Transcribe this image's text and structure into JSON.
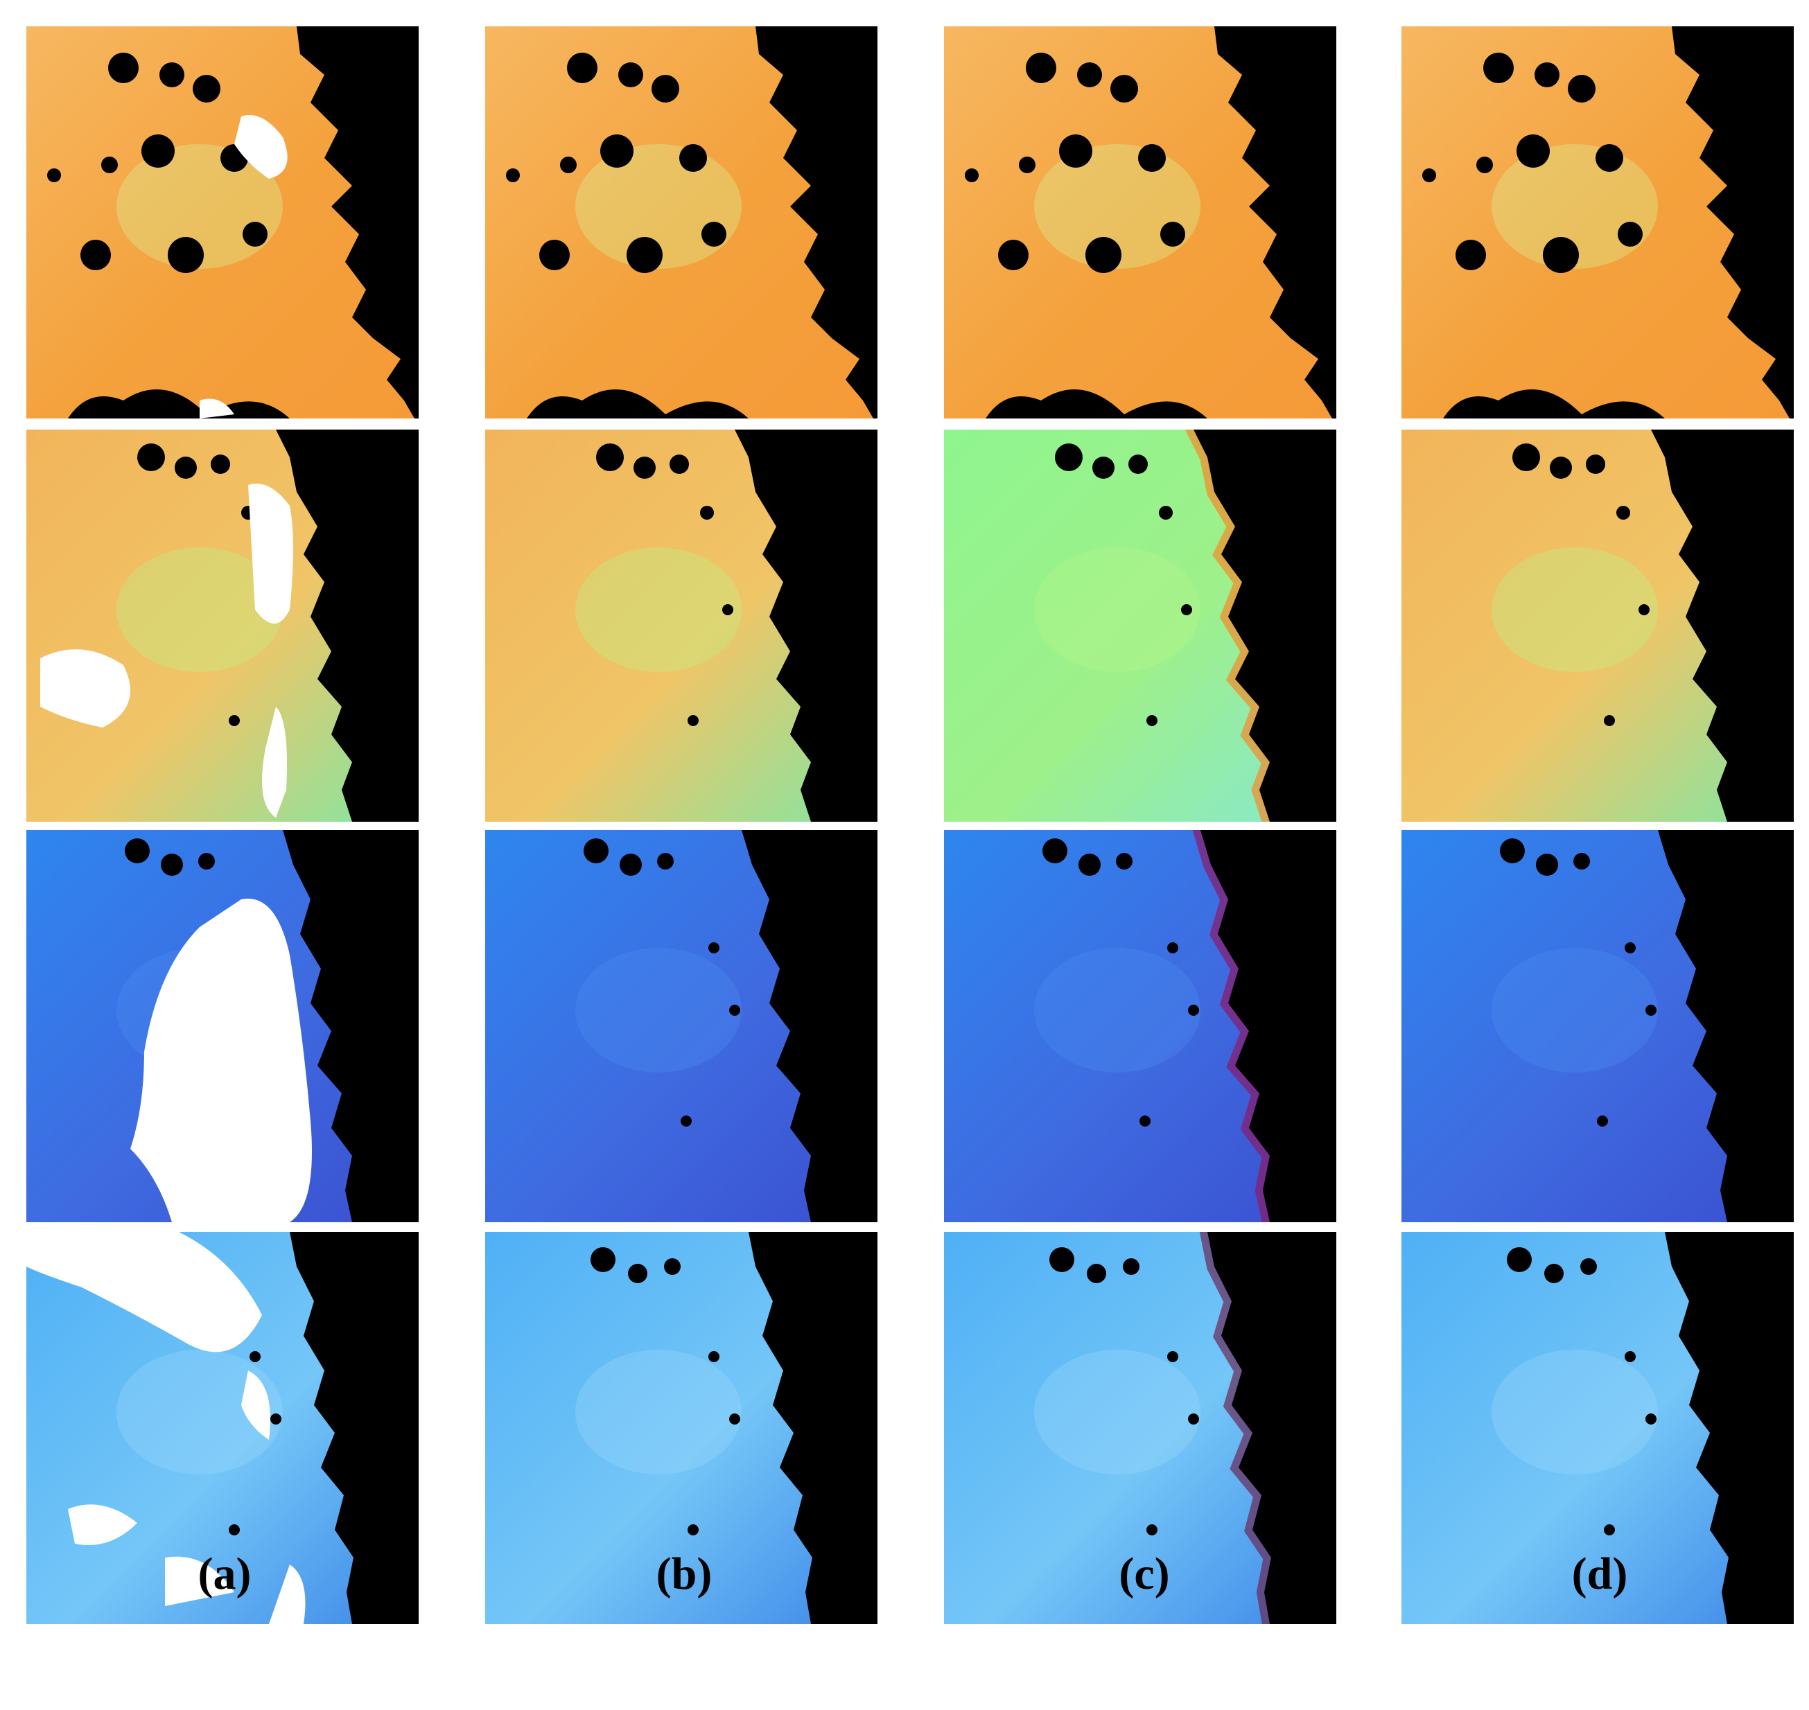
{
  "panel_labels": [
    "(a)",
    "(b)",
    "(c)",
    "(d)"
  ],
  "rows": [
    {
      "name": "row-1",
      "palette": {
        "sea": [
          "#f7b760",
          "#f4a13c",
          "#f59a38"
        ],
        "accent": "#d8f59a",
        "gap": "#ffffff",
        "land": "#000000"
      },
      "columns": [
        {
          "has_gaps": true,
          "variant": "a"
        },
        {
          "has_gaps": false,
          "variant": "b"
        },
        {
          "has_gaps": false,
          "variant": "c"
        },
        {
          "has_gaps": false,
          "variant": "d"
        }
      ]
    },
    {
      "name": "row-2",
      "palette": {
        "sea": [
          "#f2b45a",
          "#f0c567",
          "#7ee8a6"
        ],
        "accent": "#b6f58a",
        "gap": "#ffffff",
        "land": "#000000"
      },
      "columns": [
        {
          "has_gaps": true,
          "variant": "a"
        },
        {
          "has_gaps": false,
          "variant": "b"
        },
        {
          "has_gaps": false,
          "variant": "c",
          "sea_override": [
            "#8ff58f",
            "#9ef08a",
            "#86e8d0"
          ],
          "edge_color": "#f58a2a"
        },
        {
          "has_gaps": false,
          "variant": "d"
        }
      ]
    },
    {
      "name": "row-3",
      "palette": {
        "sea": [
          "#2e86ef",
          "#3f6ae0",
          "#3a4fcf"
        ],
        "accent": "#4b8bf0",
        "gap": "#ffffff",
        "land": "#000000"
      },
      "columns": [
        {
          "has_gaps": true,
          "variant": "a"
        },
        {
          "has_gaps": false,
          "variant": "b"
        },
        {
          "has_gaps": false,
          "variant": "c",
          "edge_color": "#8a1a6a"
        },
        {
          "has_gaps": false,
          "variant": "d"
        }
      ]
    },
    {
      "name": "row-4",
      "palette": {
        "sea": [
          "#4fb0f5",
          "#74c6f7",
          "#3d86e8"
        ],
        "accent": "#9ad8fb",
        "gap": "#ffffff",
        "land": "#000000"
      },
      "columns": [
        {
          "has_gaps": true,
          "variant": "a"
        },
        {
          "has_gaps": false,
          "variant": "b"
        },
        {
          "has_gaps": false,
          "variant": "c",
          "edge_color": "#6a2a5a"
        },
        {
          "has_gaps": false,
          "variant": "d"
        }
      ]
    }
  ]
}
